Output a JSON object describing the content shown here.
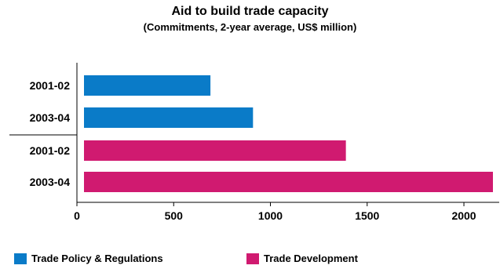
{
  "chart_data": {
    "type": "bar",
    "orientation": "horizontal",
    "title": "Aid to build trade capacity",
    "subtitle": "(Commitments, 2-year average, US$ million)",
    "xlabel": "",
    "ylabel": "",
    "xlim": [
      0,
      2150
    ],
    "xticks": [
      0,
      500,
      1000,
      1500,
      2000
    ],
    "grid": false,
    "legend_position": "bottom",
    "series": [
      {
        "name": "Trade Policy & Regulations",
        "color": "#0a7bc8",
        "categories": [
          "2001-02",
          "2003-04"
        ],
        "values": [
          690,
          910
        ]
      },
      {
        "name": "Trade Development",
        "color": "#d01a70",
        "categories": [
          "2001-02",
          "2003-04"
        ],
        "values": [
          1390,
          2150
        ]
      }
    ]
  }
}
